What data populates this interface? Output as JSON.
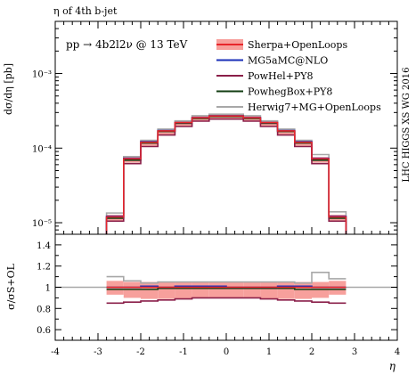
{
  "chart_data": {
    "type": "line",
    "title": "η of 4th b-jet",
    "annotation": "pp → 4b2l2ν @ 13 TeV",
    "side_label": "LHC HIGGS XS WG 2016",
    "xlabel": "η",
    "ylabel_top": "dσ/dη [pb]",
    "ylabel_bottom": "σ/σS+OL",
    "xlim": [
      -4,
      4
    ],
    "ylim_top": [
      7e-06,
      0.005
    ],
    "ylim_bottom": [
      0.5,
      1.5
    ],
    "log_top": true,
    "x_ticks": [
      -4,
      -3,
      -2,
      -1,
      0,
      1,
      2,
      3,
      4
    ],
    "y_ticks_top": [
      {
        "value": 1e-05,
        "label": "10⁻⁵"
      },
      {
        "value": 0.0001,
        "label": "10⁻⁴"
      },
      {
        "value": 0.001,
        "label": "10⁻³"
      }
    ],
    "y_ticks_bottom": [
      {
        "value": 0.6,
        "label": "0.6"
      },
      {
        "value": 0.8,
        "label": "0.8"
      },
      {
        "value": 1.0,
        "label": "1"
      },
      {
        "value": 1.2,
        "label": "1.2"
      },
      {
        "value": 1.4,
        "label": "1.4"
      }
    ],
    "bin_edges": [
      -2.8,
      -2.4,
      -2.0,
      -1.6,
      -1.2,
      -0.8,
      -0.4,
      0.0,
      0.4,
      0.8,
      1.2,
      1.6,
      2.0,
      2.4,
      2.8
    ],
    "legend_position": "top-right",
    "series": [
      {
        "name": "Sherpa+OpenLoops",
        "color": "#e8262b",
        "band_color": "#f7a09c",
        "values": [
          1.2e-05,
          7.2e-05,
          0.00012,
          0.00017,
          0.00022,
          0.000255,
          0.00027,
          0.00027,
          0.000255,
          0.00022,
          0.00017,
          0.00012,
          7.2e-05,
          1.2e-05
        ],
        "band_low": [
          1.05e-05,
          6.4e-05,
          0.000107,
          0.000152,
          0.000197,
          0.00023,
          0.000243,
          0.000243,
          0.00023,
          0.000197,
          0.000152,
          0.000107,
          6.4e-05,
          1.05e-05
        ],
        "band_high": [
          1.28e-05,
          7.6e-05,
          0.000127,
          0.00018,
          0.000232,
          0.000268,
          0.000285,
          0.000285,
          0.000268,
          0.000232,
          0.00018,
          0.000127,
          7.6e-05,
          1.28e-05
        ],
        "ratio": [
          1,
          1,
          1,
          1,
          1,
          1,
          1,
          1,
          1,
          1,
          1,
          1,
          1,
          1
        ],
        "ratio_low": [
          0.93,
          0.9,
          0.89,
          0.89,
          0.89,
          0.9,
          0.9,
          0.9,
          0.9,
          0.89,
          0.89,
          0.89,
          0.9,
          0.93
        ],
        "ratio_high": [
          1.06,
          1.05,
          1.05,
          1.05,
          1.05,
          1.05,
          1.05,
          1.05,
          1.05,
          1.05,
          1.05,
          1.05,
          1.05,
          1.06
        ]
      },
      {
        "name": "MG5aMC@NLO",
        "color": "#1a2fb8",
        "values": [
          1.22e-05,
          7.3e-05,
          0.000122,
          0.000172,
          0.00022,
          0.000257,
          0.000272,
          0.000272,
          0.000257,
          0.00022,
          0.000172,
          0.000122,
          7.3e-05,
          1.22e-05
        ],
        "ratio": [
          1.0,
          1.0,
          1.01,
          1.0,
          1.01,
          1.01,
          1.01,
          1.0,
          1.0,
          1.0,
          1.01,
          1.01,
          1.0,
          1.0
        ]
      },
      {
        "name": "PowHel+PY8",
        "color": "#8a1f49",
        "values": [
          1.05e-05,
          6.2e-05,
          0.000105,
          0.00015,
          0.000195,
          0.00023,
          0.000245,
          0.000245,
          0.00023,
          0.000195,
          0.00015,
          0.000105,
          6.2e-05,
          1.05e-05
        ],
        "ratio": [
          0.85,
          0.86,
          0.87,
          0.88,
          0.89,
          0.9,
          0.9,
          0.9,
          0.9,
          0.89,
          0.88,
          0.87,
          0.86,
          0.85
        ]
      },
      {
        "name": "PowhegBox+PY8",
        "color": "#123d12",
        "values": [
          1.15e-05,
          6.9e-05,
          0.000117,
          0.000167,
          0.000215,
          0.00025,
          0.000265,
          0.000265,
          0.00025,
          0.000215,
          0.000167,
          0.000117,
          6.9e-05,
          1.15e-05
        ],
        "ratio": [
          0.98,
          0.98,
          0.98,
          0.99,
          0.99,
          0.99,
          0.99,
          0.99,
          0.99,
          0.99,
          0.99,
          0.98,
          0.98,
          0.98
        ]
      },
      {
        "name": "Herwig7+MG+OpenLoops",
        "color": "#a8a8a8",
        "values": [
          1.35e-05,
          7.7e-05,
          0.000127,
          0.00018,
          0.000232,
          0.000272,
          0.000285,
          0.000285,
          0.000272,
          0.000232,
          0.00018,
          0.000127,
          8.2e-05,
          1.4e-05
        ],
        "ratio": [
          1.1,
          1.06,
          1.04,
          1.05,
          1.05,
          1.05,
          1.05,
          1.05,
          1.05,
          1.05,
          1.05,
          1.04,
          1.14,
          1.08
        ]
      }
    ]
  }
}
